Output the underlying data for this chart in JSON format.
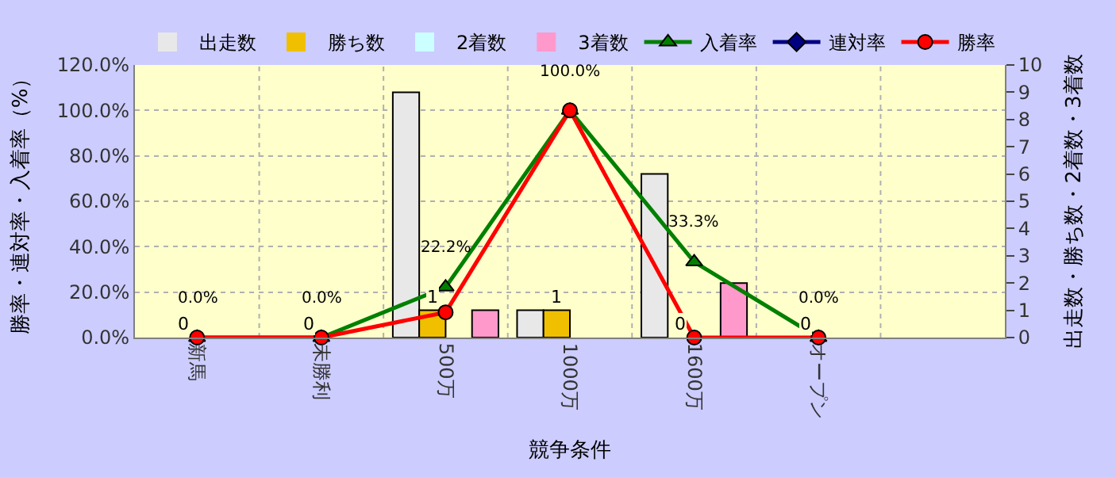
{
  "chart_data": {
    "type": "bar",
    "xlabel": "競争条件",
    "ylabel": "勝率・連対率・入着率（%）",
    "y2label": "出走数・勝ち数・2着数・3着数",
    "categories": [
      "新馬",
      "未勝利",
      "500万",
      "1000万",
      "1600万",
      "オープン",
      null
    ],
    "series": [
      {
        "name": "出走数",
        "axis": "y2",
        "color": "#e8e8e8",
        "values": [
          0,
          0,
          9,
          1,
          6,
          0,
          null
        ]
      },
      {
        "name": "勝ち数",
        "axis": "y2",
        "color": "#f0c000",
        "values": [
          0,
          0,
          1,
          1,
          0,
          0,
          null
        ],
        "value_labels": [
          "0",
          "0",
          "1",
          "1",
          "0",
          "0",
          null
        ]
      },
      {
        "name": "2着数",
        "axis": "y2",
        "color": "#ccffff",
        "values": [
          0,
          0,
          0,
          0,
          0,
          0,
          null
        ]
      },
      {
        "name": "3着数",
        "axis": "y2",
        "color": "#ff99cc",
        "values": [
          0,
          0,
          1,
          0,
          2,
          0,
          null
        ]
      },
      {
        "name": "入着率",
        "type": "line",
        "axis": "y",
        "color": "#008000",
        "marker": "triangle",
        "values": [
          0,
          0,
          22.2,
          100,
          33.3,
          0,
          null
        ],
        "value_labels": [
          "0.0%",
          "0.0%",
          "22.2%",
          "100.0%",
          "33.3%",
          "0.0%",
          null
        ]
      },
      {
        "name": "連対率",
        "type": "line",
        "axis": "y",
        "color": "#000080",
        "marker": "diamond",
        "values": [
          null,
          null,
          null,
          null,
          null,
          null,
          null
        ]
      },
      {
        "name": "勝率",
        "type": "line",
        "axis": "y",
        "color": "#ff0000",
        "marker": "circle",
        "values": [
          0,
          0,
          11.1,
          100,
          0,
          0,
          null
        ]
      }
    ],
    "ylim": [
      0,
      120
    ],
    "yticks": [
      {
        "value": 0,
        "label": "0.0%"
      },
      {
        "value": 20,
        "label": "20.0%"
      },
      {
        "value": 40,
        "label": "40.0%"
      },
      {
        "value": 60,
        "label": "60.0%"
      },
      {
        "value": 80,
        "label": "80.0%"
      },
      {
        "value": 100,
        "label": "100.0%"
      },
      {
        "value": 120,
        "label": "120.0%"
      }
    ],
    "y2lim": [
      0,
      10
    ],
    "y2ticks": [
      0,
      1,
      2,
      3,
      4,
      5,
      6,
      7,
      8,
      9,
      10
    ],
    "grid": true,
    "legend": "top"
  }
}
